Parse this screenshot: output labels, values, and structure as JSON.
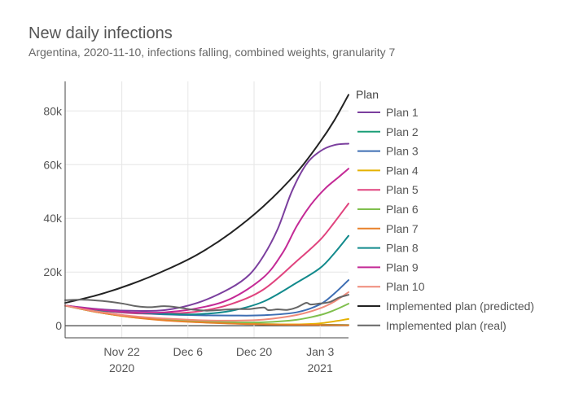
{
  "chart_data": {
    "type": "line",
    "title": "New daily infections",
    "subtitle": "Argentina, 2020-11-10, infections falling, combined weights, granularity 7",
    "xlabel": "",
    "ylabel": "",
    "x_range": [
      "2020-11-10",
      "2021-01-09"
    ],
    "ylim": [
      -4500,
      91000
    ],
    "grid": true,
    "legend": {
      "title": "Plan",
      "placement": "right"
    },
    "x_ticks": [
      {
        "date": "2020-11-22",
        "label": "Nov 22",
        "sublabel": "2020"
      },
      {
        "date": "2020-12-06",
        "label": "Dec 6",
        "sublabel": ""
      },
      {
        "date": "2020-12-20",
        "label": "Dec 20",
        "sublabel": ""
      },
      {
        "date": "2021-01-03",
        "label": "Jan 3",
        "sublabel": "2021"
      }
    ],
    "y_ticks": [
      {
        "value": 0,
        "label": "0"
      },
      {
        "value": 20000,
        "label": "20k"
      },
      {
        "value": 40000,
        "label": "40k"
      },
      {
        "value": 60000,
        "label": "60k"
      },
      {
        "value": 80000,
        "label": "80k"
      }
    ],
    "series": [
      {
        "name": "Plan 1",
        "color": "#7b3f9e",
        "points": [
          [
            "2020-11-10",
            7500
          ],
          [
            "2020-11-17",
            6200
          ],
          [
            "2020-11-24",
            5600
          ],
          [
            "2020-12-01",
            5800
          ],
          [
            "2020-12-08",
            8500
          ],
          [
            "2020-12-15",
            14000
          ],
          [
            "2020-12-19",
            19000
          ],
          [
            "2020-12-22",
            26000
          ],
          [
            "2020-12-25",
            36000
          ],
          [
            "2020-12-28",
            50000
          ],
          [
            "2020-12-31",
            60000
          ],
          [
            "2021-01-03",
            65000
          ],
          [
            "2021-01-06",
            67300
          ],
          [
            "2021-01-09",
            67800
          ]
        ]
      },
      {
        "name": "Plan 2",
        "color": "#1a9e77",
        "points": [
          [
            "2020-11-10",
            7500
          ],
          [
            "2020-11-17",
            5000
          ],
          [
            "2020-11-24",
            3300
          ],
          [
            "2020-12-01",
            2300
          ],
          [
            "2020-12-08",
            1500
          ],
          [
            "2020-12-15",
            900
          ],
          [
            "2020-12-22",
            600
          ],
          [
            "2020-12-29",
            450
          ],
          [
            "2021-01-05",
            350
          ],
          [
            "2021-01-09",
            300
          ]
        ]
      },
      {
        "name": "Plan 3",
        "color": "#3d6eb3",
        "points": [
          [
            "2020-11-10",
            7500
          ],
          [
            "2020-11-17",
            5800
          ],
          [
            "2020-11-24",
            4800
          ],
          [
            "2020-12-01",
            4200
          ],
          [
            "2020-12-08",
            3900
          ],
          [
            "2020-12-15",
            3800
          ],
          [
            "2020-12-22",
            3900
          ],
          [
            "2020-12-29",
            5000
          ],
          [
            "2021-01-03",
            8000
          ],
          [
            "2021-01-06",
            12000
          ],
          [
            "2021-01-09",
            17000
          ]
        ]
      },
      {
        "name": "Plan 4",
        "color": "#e5b100",
        "points": [
          [
            "2020-11-10",
            7500
          ],
          [
            "2020-11-17",
            5000
          ],
          [
            "2020-11-24",
            3200
          ],
          [
            "2020-12-01",
            2200
          ],
          [
            "2020-12-08",
            1400
          ],
          [
            "2020-12-15",
            900
          ],
          [
            "2020-12-22",
            600
          ],
          [
            "2020-12-29",
            500
          ],
          [
            "2021-01-03",
            900
          ],
          [
            "2021-01-09",
            2500
          ]
        ]
      },
      {
        "name": "Plan 5",
        "color": "#e0437e",
        "points": [
          [
            "2020-11-10",
            7500
          ],
          [
            "2020-11-17",
            5700
          ],
          [
            "2020-11-24",
            4700
          ],
          [
            "2020-12-01",
            4500
          ],
          [
            "2020-12-08",
            5300
          ],
          [
            "2020-12-15",
            8000
          ],
          [
            "2020-12-22",
            13500
          ],
          [
            "2020-12-29",
            24000
          ],
          [
            "2021-01-03",
            32000
          ],
          [
            "2021-01-06",
            38500
          ],
          [
            "2021-01-09",
            45500
          ]
        ]
      },
      {
        "name": "Plan 6",
        "color": "#7fbf4d",
        "points": [
          [
            "2020-11-10",
            7500
          ],
          [
            "2020-11-17",
            5200
          ],
          [
            "2020-11-24",
            3500
          ],
          [
            "2020-12-01",
            2500
          ],
          [
            "2020-12-08",
            1800
          ],
          [
            "2020-12-15",
            1300
          ],
          [
            "2020-12-22",
            1300
          ],
          [
            "2020-12-29",
            2200
          ],
          [
            "2021-01-03",
            4000
          ],
          [
            "2021-01-06",
            5800
          ],
          [
            "2021-01-09",
            8200
          ]
        ]
      },
      {
        "name": "Plan 7",
        "color": "#e8812a",
        "points": [
          [
            "2020-11-10",
            7500
          ],
          [
            "2020-11-17",
            5000
          ],
          [
            "2020-11-24",
            3200
          ],
          [
            "2020-12-01",
            2000
          ],
          [
            "2020-12-08",
            1300
          ],
          [
            "2020-12-15",
            800
          ],
          [
            "2020-12-22",
            500
          ],
          [
            "2020-12-29",
            350
          ],
          [
            "2021-01-05",
            250
          ],
          [
            "2021-01-09",
            200
          ]
        ]
      },
      {
        "name": "Plan 8",
        "color": "#128a8c",
        "points": [
          [
            "2020-11-10",
            7500
          ],
          [
            "2020-11-17",
            5800
          ],
          [
            "2020-11-24",
            4900
          ],
          [
            "2020-12-01",
            4400
          ],
          [
            "2020-12-08",
            4300
          ],
          [
            "2020-12-15",
            5500
          ],
          [
            "2020-12-22",
            9000
          ],
          [
            "2020-12-29",
            16000
          ],
          [
            "2021-01-03",
            21500
          ],
          [
            "2021-01-06",
            27000
          ],
          [
            "2021-01-09",
            33500
          ]
        ]
      },
      {
        "name": "Plan 9",
        "color": "#c42a96",
        "points": [
          [
            "2020-11-10",
            7500
          ],
          [
            "2020-11-17",
            6000
          ],
          [
            "2020-11-24",
            5000
          ],
          [
            "2020-12-01",
            5000
          ],
          [
            "2020-12-08",
            6500
          ],
          [
            "2020-12-15",
            10000
          ],
          [
            "2020-12-22",
            18000
          ],
          [
            "2020-12-26",
            27000
          ],
          [
            "2020-12-29",
            37000
          ],
          [
            "2021-01-01",
            45000
          ],
          [
            "2021-01-04",
            51000
          ],
          [
            "2021-01-07",
            55500
          ],
          [
            "2021-01-09",
            58500
          ]
        ]
      },
      {
        "name": "Plan 10",
        "color": "#ef8a7a",
        "points": [
          [
            "2020-11-10",
            7500
          ],
          [
            "2020-11-17",
            5200
          ],
          [
            "2020-11-24",
            3600
          ],
          [
            "2020-12-01",
            2700
          ],
          [
            "2020-12-08",
            2100
          ],
          [
            "2020-12-15",
            1900
          ],
          [
            "2020-12-22",
            2300
          ],
          [
            "2020-12-29",
            4000
          ],
          [
            "2021-01-03",
            6500
          ],
          [
            "2021-01-06",
            9000
          ],
          [
            "2021-01-09",
            12500
          ]
        ]
      },
      {
        "name": "Implemented plan (predicted)",
        "color": "#222222",
        "points": [
          [
            "2020-11-10",
            8500
          ],
          [
            "2020-11-17",
            11500
          ],
          [
            "2020-11-24",
            15500
          ],
          [
            "2020-12-01",
            20500
          ],
          [
            "2020-12-08",
            26500
          ],
          [
            "2020-12-15",
            34500
          ],
          [
            "2020-12-22",
            44500
          ],
          [
            "2020-12-29",
            57000
          ],
          [
            "2021-01-03",
            68500
          ],
          [
            "2021-01-06",
            76500
          ],
          [
            "2021-01-09",
            86000
          ]
        ]
      },
      {
        "name": "Implemented plan (real)",
        "color": "#666666",
        "points": [
          [
            "2020-11-10",
            9500
          ],
          [
            "2020-11-14",
            9700
          ],
          [
            "2020-11-18",
            9200
          ],
          [
            "2020-11-22",
            8300
          ],
          [
            "2020-11-25",
            7300
          ],
          [
            "2020-11-28",
            6900
          ],
          [
            "2020-12-01",
            7300
          ],
          [
            "2020-12-04",
            6800
          ],
          [
            "2020-12-07",
            6000
          ],
          [
            "2020-12-10",
            5600
          ],
          [
            "2020-12-13",
            5900
          ],
          [
            "2020-12-16",
            6200
          ],
          [
            "2020-12-19",
            6200
          ],
          [
            "2020-12-22",
            6800
          ],
          [
            "2020-12-23",
            5800
          ],
          [
            "2020-12-25",
            6100
          ],
          [
            "2020-12-27",
            5900
          ],
          [
            "2020-12-29",
            6800
          ],
          [
            "2020-12-31",
            8500
          ],
          [
            "2021-01-01",
            7900
          ],
          [
            "2021-01-03",
            8300
          ],
          [
            "2021-01-05",
            8800
          ],
          [
            "2021-01-07",
            10500
          ],
          [
            "2021-01-09",
            11500
          ]
        ]
      }
    ]
  }
}
